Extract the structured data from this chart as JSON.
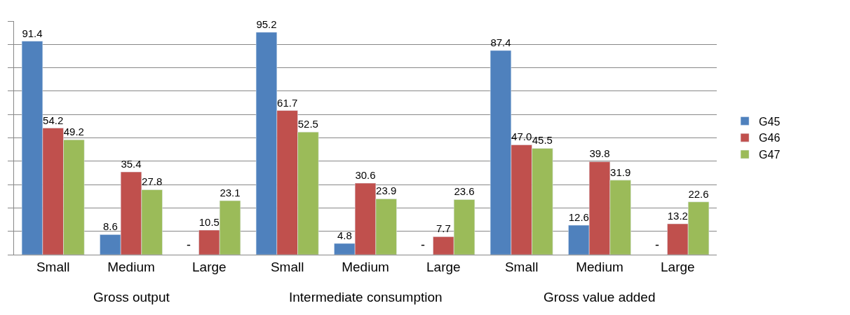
{
  "chart_data": {
    "type": "bar",
    "categories": [
      "Small",
      "Medium",
      "Large",
      "Small",
      "Medium",
      "Large",
      "Small",
      "Medium",
      "Large"
    ],
    "series": [
      {
        "name": "G45",
        "color": "#4f81bd",
        "values": [
          91.4,
          8.6,
          null,
          95.2,
          4.8,
          null,
          87.4,
          12.6,
          null
        ],
        "value_labels": [
          "91.4",
          "8.6",
          "-",
          "95.2",
          "4.8",
          "-",
          "87.4",
          "12.6",
          "-"
        ]
      },
      {
        "name": "G46",
        "color": "#c0504d",
        "values": [
          54.2,
          35.4,
          10.5,
          61.7,
          30.6,
          7.7,
          47.0,
          39.8,
          13.2
        ],
        "value_labels": [
          "54.2",
          "35.4",
          "10.5",
          "61.7",
          "30.6",
          "7.7",
          "47.0",
          "39.8",
          "13.2"
        ]
      },
      {
        "name": "G47",
        "color": "#9bbb59",
        "values": [
          49.2,
          27.8,
          23.1,
          52.5,
          23.9,
          23.6,
          45.5,
          31.9,
          22.6
        ],
        "value_labels": [
          "49.2",
          "27.8",
          "23.1",
          "52.5",
          "23.9",
          "23.6",
          "45.5",
          "31.9",
          "22.6"
        ]
      }
    ],
    "annotations": [
      "Gross output",
      "Intermediate consumption",
      "Gross value added"
    ],
    "ylim": [
      0,
      100
    ],
    "yticks": [
      {
        "value": 0,
        "label": null
      },
      {
        "value": 10,
        "label": null
      },
      {
        "value": 20,
        "label": null
      },
      {
        "value": 30,
        "label": null
      },
      {
        "value": 40,
        "label": null
      },
      {
        "value": 50,
        "label": null
      },
      {
        "value": 60,
        "label": null
      },
      {
        "value": 70,
        "label": null
      },
      {
        "value": 80,
        "label": null
      },
      {
        "value": 90,
        "label": null
      },
      {
        "value": 100,
        "label": null
      }
    ],
    "grid": "y",
    "legend": "right",
    "tick_labels": "x"
  }
}
